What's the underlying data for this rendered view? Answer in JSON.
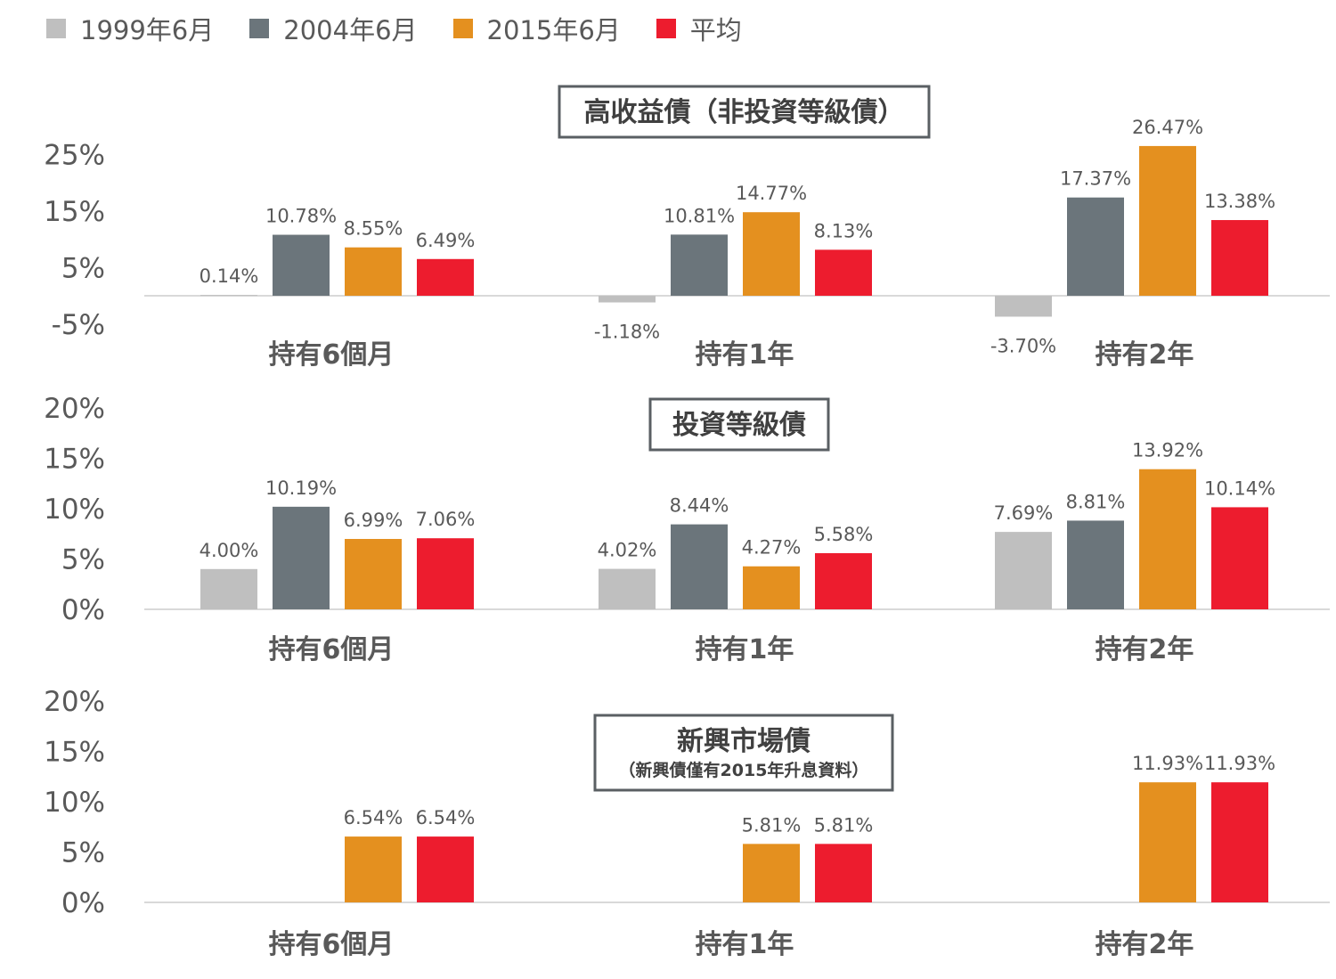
{
  "legend": {
    "items": [
      {
        "label": "1999年6月",
        "color": "#BFBFBF"
      },
      {
        "label": "2004年6月",
        "color": "#6B757B"
      },
      {
        "label": "2015年6月",
        "color": "#E4901F"
      },
      {
        "label": "平均",
        "color": "#ED1C2E"
      }
    ]
  },
  "chart_data": [
    {
      "type": "bar",
      "title": "高收益債（非投資等級債）",
      "subtitle": "",
      "categories": [
        "持有6個月",
        "持有1年",
        "持有2年"
      ],
      "series": [
        {
          "name": "1999年6月",
          "values": [
            0.14,
            -1.18,
            -3.7
          ],
          "labels": [
            "0.14%",
            "-1.18%",
            "-3.70%"
          ]
        },
        {
          "name": "2004年6月",
          "values": [
            10.78,
            10.81,
            17.37
          ],
          "labels": [
            "10.78%",
            "10.81%",
            "17.37%"
          ]
        },
        {
          "name": "2015年6月",
          "values": [
            8.55,
            14.77,
            26.47
          ],
          "labels": [
            "8.55%",
            "14.77%",
            "26.47%"
          ]
        },
        {
          "name": "平均",
          "values": [
            6.49,
            8.13,
            13.38
          ],
          "labels": [
            "6.49%",
            "8.13%",
            "13.38%"
          ]
        }
      ],
      "yticks": [
        -5,
        5,
        15,
        25
      ],
      "ytick_labels": [
        "-5%",
        "5%",
        "15%",
        "25%"
      ],
      "ylim": [
        -5,
        25
      ]
    },
    {
      "type": "bar",
      "title": "投資等級債",
      "subtitle": "",
      "categories": [
        "持有6個月",
        "持有1年",
        "持有2年"
      ],
      "series": [
        {
          "name": "1999年6月",
          "values": [
            4.0,
            4.02,
            7.69
          ],
          "labels": [
            "4.00%",
            "4.02%",
            "7.69%"
          ]
        },
        {
          "name": "2004年6月",
          "values": [
            10.19,
            8.44,
            8.81
          ],
          "labels": [
            "10.19%",
            "8.44%",
            "8.81%"
          ]
        },
        {
          "name": "2015年6月",
          "values": [
            6.99,
            4.27,
            13.92
          ],
          "labels": [
            "6.99%",
            "4.27%",
            "13.92%"
          ]
        },
        {
          "name": "平均",
          "values": [
            7.06,
            5.58,
            10.14
          ],
          "labels": [
            "7.06%",
            "5.58%",
            "10.14%"
          ]
        }
      ],
      "yticks": [
        0,
        5,
        10,
        15,
        20
      ],
      "ytick_labels": [
        "0%",
        "5%",
        "10%",
        "15%",
        "20%"
      ],
      "ylim": [
        0,
        20
      ]
    },
    {
      "type": "bar",
      "title": "新興市場債",
      "subtitle": "（新興債僅有2015年升息資料）",
      "categories": [
        "持有6個月",
        "持有1年",
        "持有2年"
      ],
      "series": [
        {
          "name": "1999年6月",
          "values": [
            null,
            null,
            null
          ],
          "labels": [
            "",
            "",
            ""
          ]
        },
        {
          "name": "2004年6月",
          "values": [
            null,
            null,
            null
          ],
          "labels": [
            "",
            "",
            ""
          ]
        },
        {
          "name": "2015年6月",
          "values": [
            6.54,
            5.81,
            11.93
          ],
          "labels": [
            "6.54%",
            "5.81%",
            "11.93%"
          ]
        },
        {
          "name": "平均",
          "values": [
            6.54,
            5.81,
            11.93
          ],
          "labels": [
            "6.54%",
            "5.81%",
            "11.93%"
          ]
        }
      ],
      "yticks": [
        0,
        5,
        10,
        15,
        20
      ],
      "ytick_labels": [
        "0%",
        "5%",
        "10%",
        "15%",
        "20%"
      ],
      "ylim": [
        0,
        20
      ]
    }
  ]
}
